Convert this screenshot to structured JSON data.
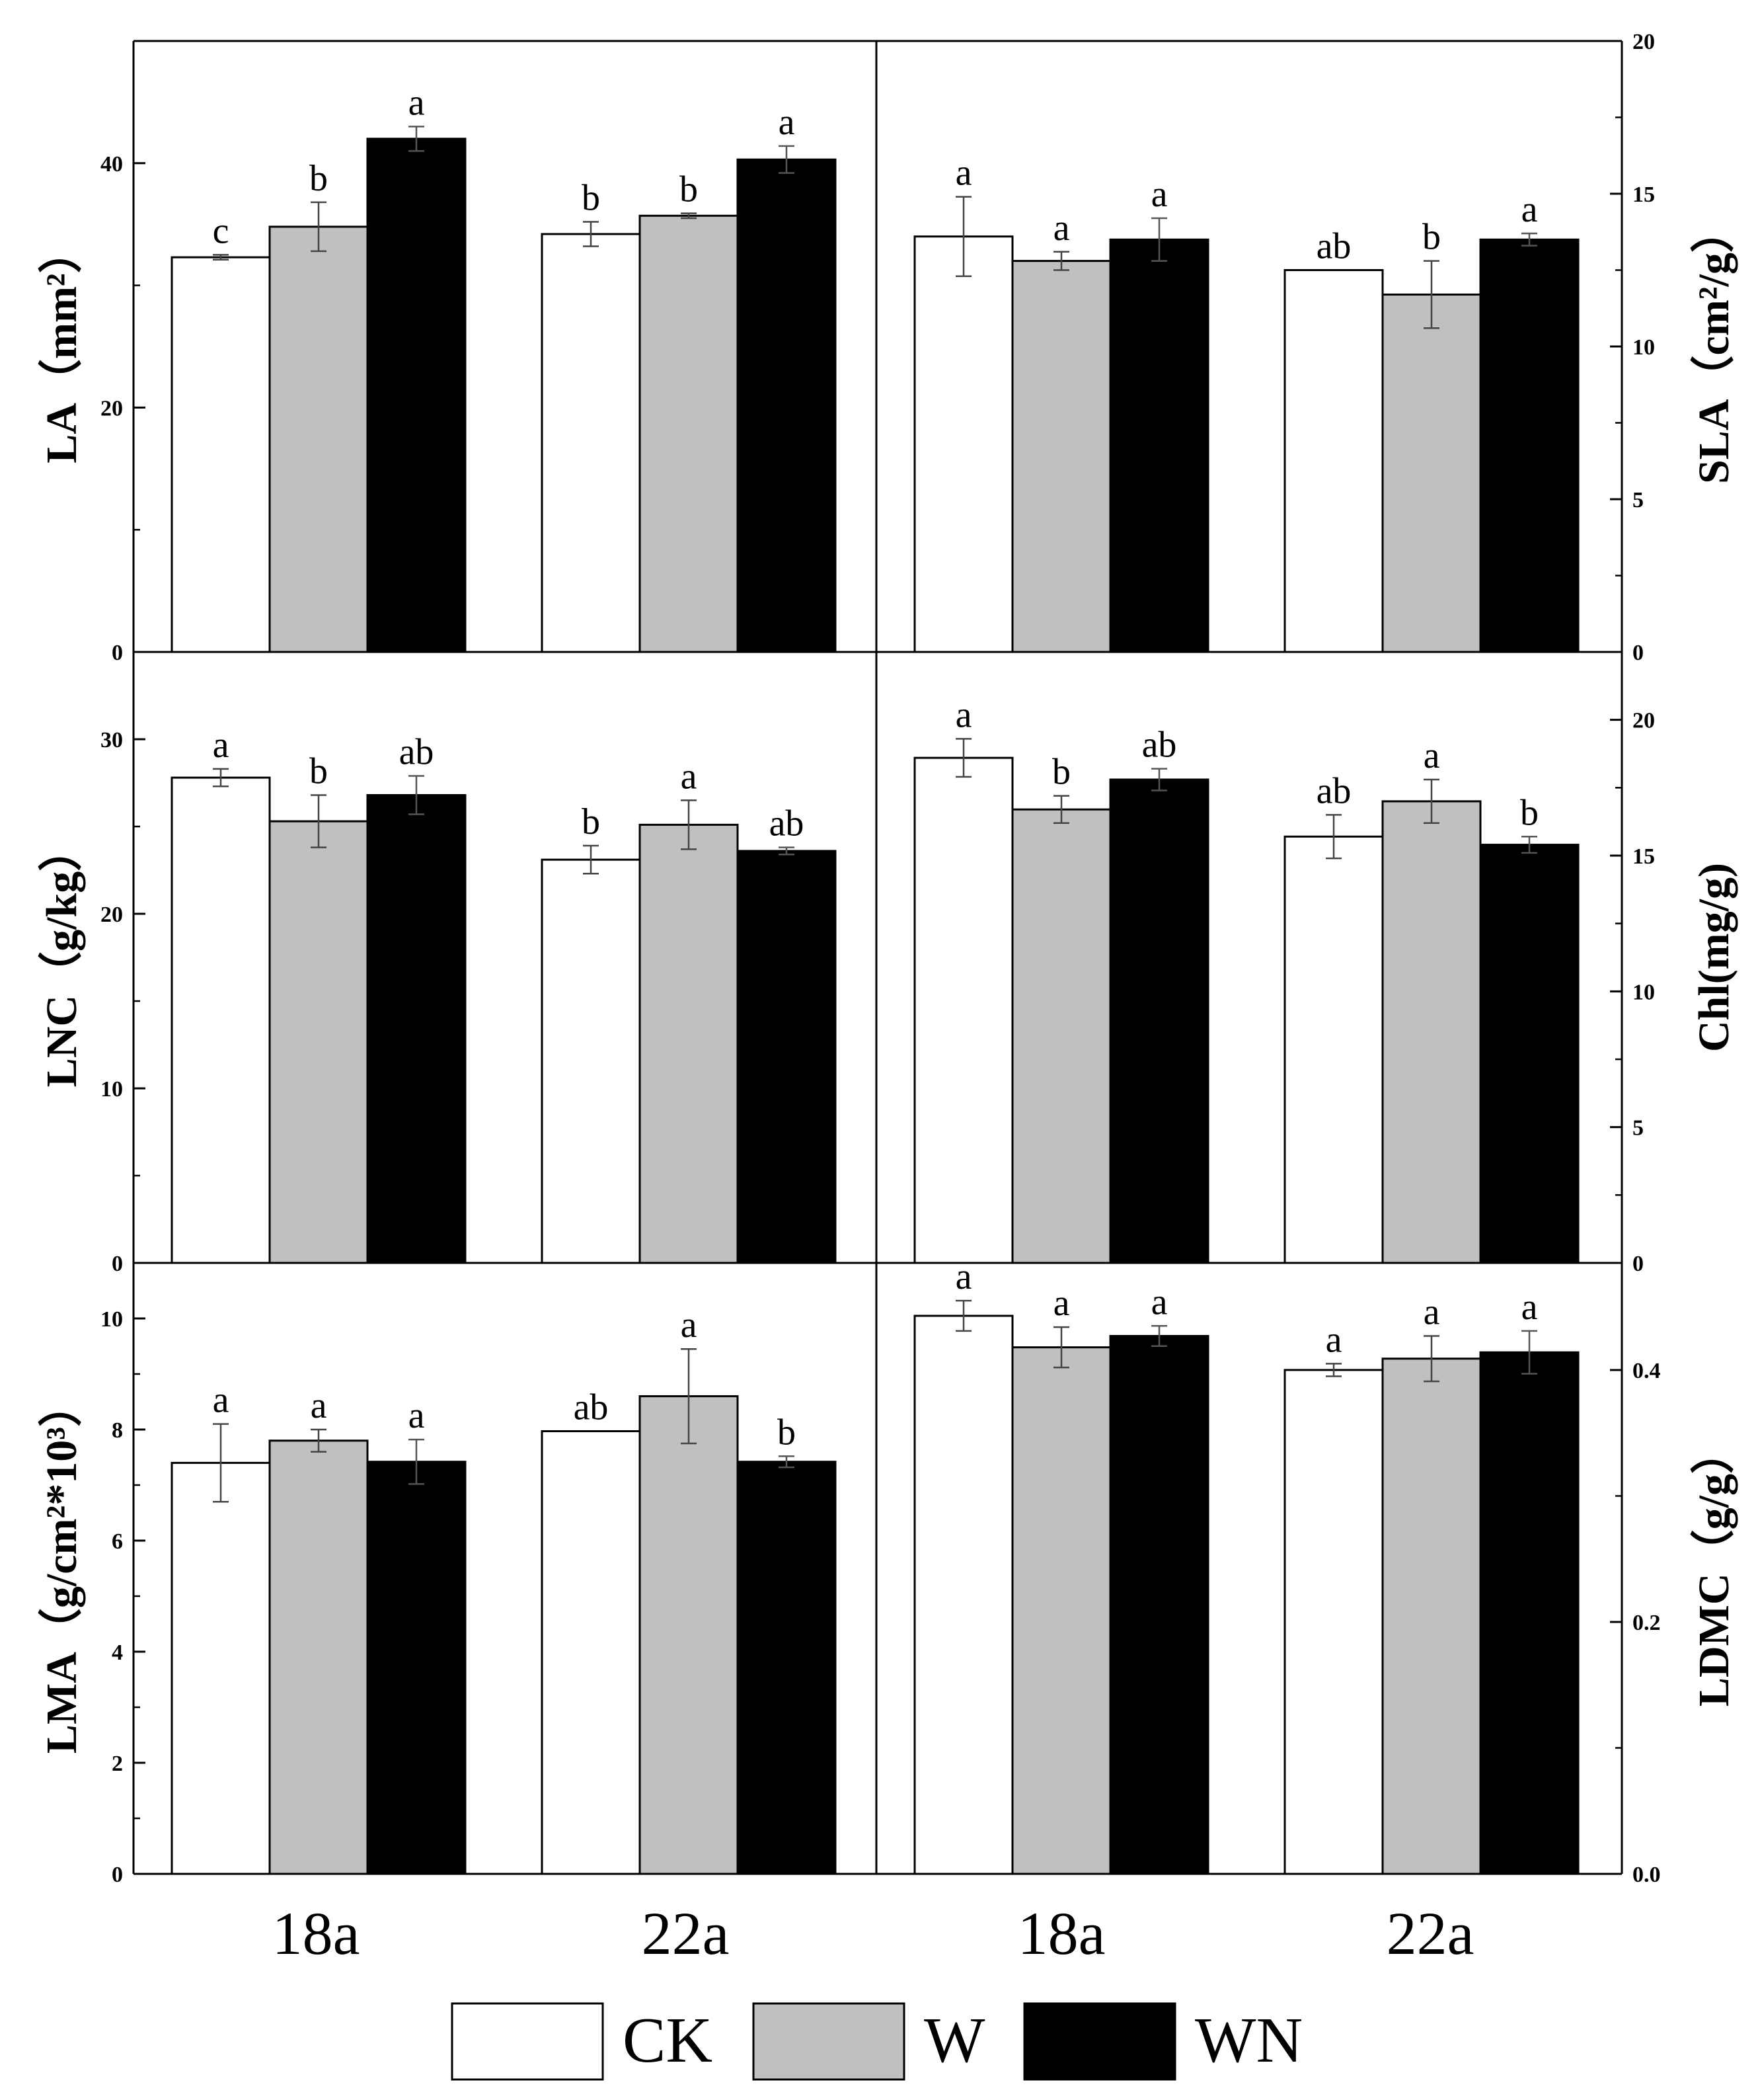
{
  "legend": [
    {
      "name": "CK",
      "color": "#ffffff"
    },
    {
      "name": "W",
      "color": "#c0c0c0"
    },
    {
      "name": "WN",
      "color": "#000000"
    }
  ],
  "chart_data": [
    {
      "type": "bar",
      "panel": "top-left",
      "ylabel": "LA（mm²）",
      "ylim": [
        0,
        50
      ],
      "ticks": [
        0,
        20,
        40
      ],
      "minor_step": 10,
      "axis_side": "left",
      "categories": [
        "18a",
        "22a"
      ],
      "series": [
        {
          "name": "CK",
          "values": [
            32.3,
            34.2
          ],
          "errors": [
            0.2,
            1.0
          ],
          "letters": [
            "c",
            "b"
          ]
        },
        {
          "name": "W",
          "values": [
            34.8,
            35.7
          ],
          "errors": [
            2.0,
            0.2
          ],
          "letters": [
            "b",
            "b"
          ]
        },
        {
          "name": "WN",
          "values": [
            42.0,
            40.3
          ],
          "errors": [
            1.0,
            1.1
          ],
          "letters": [
            "a",
            "a"
          ]
        }
      ]
    },
    {
      "type": "bar",
      "panel": "top-right",
      "ylabel": "SLA（cm²/g）",
      "ylim": [
        0,
        20
      ],
      "ticks": [
        0,
        5,
        10,
        15,
        20
      ],
      "minor_step": 2.5,
      "axis_side": "right",
      "categories": [
        "18a",
        "22a"
      ],
      "series": [
        {
          "name": "CK",
          "values": [
            13.6,
            12.5
          ],
          "errors": [
            1.3,
            0.0
          ],
          "letters": [
            "a",
            "ab"
          ]
        },
        {
          "name": "W",
          "values": [
            12.8,
            11.7
          ],
          "errors": [
            0.3,
            1.1
          ],
          "letters": [
            "a",
            "b"
          ]
        },
        {
          "name": "WN",
          "values": [
            13.5,
            13.5
          ],
          "errors": [
            0.7,
            0.2
          ],
          "letters": [
            "a",
            "a"
          ]
        }
      ]
    },
    {
      "type": "bar",
      "panel": "middle-left",
      "ylabel": "LNC（g/kg）",
      "ylim": [
        0,
        35
      ],
      "ticks": [
        0,
        10,
        20,
        30
      ],
      "minor_step": 5,
      "axis_side": "left",
      "categories": [
        "18a",
        "22a"
      ],
      "series": [
        {
          "name": "CK",
          "values": [
            27.8,
            23.1
          ],
          "errors": [
            0.5,
            0.8
          ],
          "letters": [
            "a",
            "b"
          ]
        },
        {
          "name": "W",
          "values": [
            25.3,
            25.1
          ],
          "errors": [
            1.5,
            1.4
          ],
          "letters": [
            "b",
            "a"
          ]
        },
        {
          "name": "WN",
          "values": [
            26.8,
            23.6
          ],
          "errors": [
            1.1,
            0.2
          ],
          "letters": [
            "ab",
            "ab"
          ]
        }
      ]
    },
    {
      "type": "bar",
      "panel": "middle-right",
      "ylabel": "Chl(mg/g)",
      "ylim": [
        0,
        22.5
      ],
      "ticks": [
        0,
        5,
        10,
        15,
        20
      ],
      "minor_step": 2.5,
      "axis_side": "right",
      "categories": [
        "18a",
        "22a"
      ],
      "series": [
        {
          "name": "CK",
          "values": [
            18.6,
            15.7
          ],
          "errors": [
            0.7,
            0.8
          ],
          "letters": [
            "a",
            "ab"
          ]
        },
        {
          "name": "W",
          "values": [
            16.7,
            17.0
          ],
          "errors": [
            0.5,
            0.8
          ],
          "letters": [
            "b",
            "a"
          ]
        },
        {
          "name": "WN",
          "values": [
            17.8,
            15.4
          ],
          "errors": [
            0.4,
            0.3
          ],
          "letters": [
            "ab",
            "b"
          ]
        }
      ]
    },
    {
      "type": "bar",
      "panel": "bottom-left",
      "ylabel": "LMA（g/cm²*10³）",
      "ylim": [
        0,
        11
      ],
      "ticks": [
        0,
        2,
        4,
        6,
        8,
        10
      ],
      "minor_step": 1,
      "axis_side": "left",
      "categories": [
        "18a",
        "22a"
      ],
      "series": [
        {
          "name": "CK",
          "values": [
            7.4,
            7.97
          ],
          "errors": [
            0.7,
            0.0
          ],
          "letters": [
            "a",
            "ab"
          ]
        },
        {
          "name": "W",
          "values": [
            7.8,
            8.6
          ],
          "errors": [
            0.2,
            0.85
          ],
          "letters": [
            "a",
            "a"
          ]
        },
        {
          "name": "WN",
          "values": [
            7.42,
            7.42
          ],
          "errors": [
            0.4,
            0.1
          ],
          "letters": [
            "a",
            "b"
          ]
        }
      ]
    },
    {
      "type": "bar",
      "panel": "bottom-right",
      "ylabel": "LDMC（g/g）",
      "ylim": [
        0,
        0.485
      ],
      "ticks": [
        0.0,
        0.2,
        0.4
      ],
      "tick_decimals": 1,
      "minor_step": 0.1,
      "axis_side": "right",
      "categories": [
        "18a",
        "22a"
      ],
      "series": [
        {
          "name": "CK",
          "values": [
            0.443,
            0.4
          ],
          "errors": [
            0.012,
            0.005
          ],
          "letters": [
            "a",
            "a"
          ]
        },
        {
          "name": "W",
          "values": [
            0.418,
            0.409
          ],
          "errors": [
            0.016,
            0.018
          ],
          "letters": [
            "a",
            "a"
          ]
        },
        {
          "name": "WN",
          "values": [
            0.427,
            0.414
          ],
          "errors": [
            0.008,
            0.017
          ],
          "letters": [
            "a",
            "a"
          ]
        }
      ]
    }
  ]
}
